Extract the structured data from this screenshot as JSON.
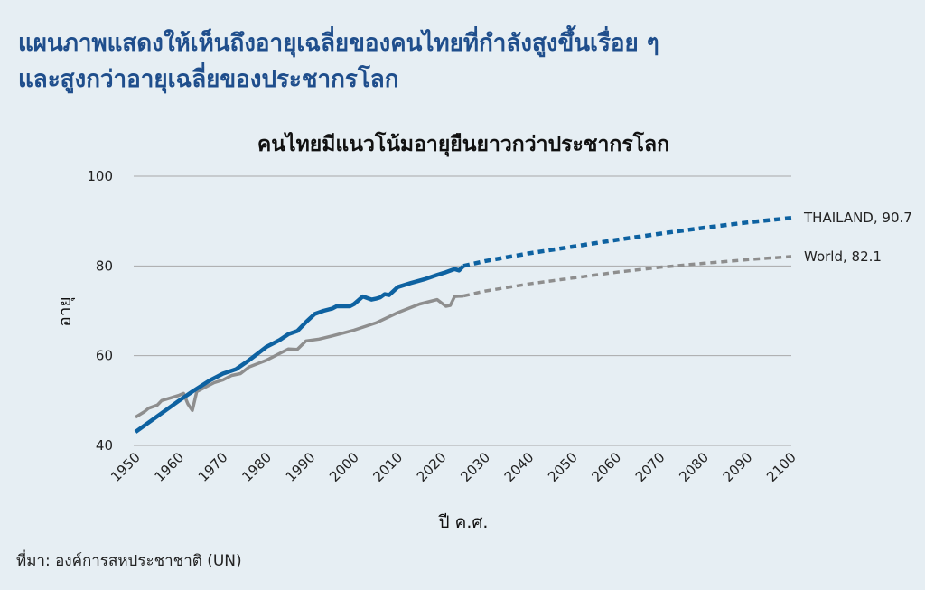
{
  "headline": {
    "line1": "แผนภาพแสดงให้เห็นถึงอายุเฉลี่ยของคนไทยที่กำลังสูงขึ้นเรื่อย ๆ",
    "line2": "และสูงกว่าอายุเฉลี่ยของประชากรโลก"
  },
  "source": "ที่มา:  องค์การสหประชาชาติ (UN)",
  "colors": {
    "thailand": "#0e62a1",
    "world": "#8e8e8e",
    "grid": "#a8a8a8",
    "background": "#e6eef3"
  },
  "chart_data": {
    "type": "line",
    "title": "คนไทยมีแนวโน้มอายุยืนยาวกว่าประชากรโลก",
    "xlabel": "ปี ค.ศ.",
    "ylabel": "อายุ",
    "xlim": [
      1950,
      2100
    ],
    "ylim": [
      40,
      100
    ],
    "x_ticks": [
      "1950",
      "1960",
      "1970",
      "1980",
      "1990",
      "2000",
      "2010",
      "2020",
      "2030",
      "2040",
      "2050",
      "2060",
      "2070",
      "2080",
      "2090",
      "2100"
    ],
    "y_ticks": [
      "40",
      "60",
      "80",
      "100"
    ],
    "grid": true,
    "series": [
      {
        "name": "Thailand",
        "end_label": "THAILAND, 90.7",
        "historical": [
          [
            1950,
            43
          ],
          [
            1955,
            46.5
          ],
          [
            1960,
            50
          ],
          [
            1963,
            52
          ],
          [
            1967,
            54.5
          ],
          [
            1970,
            56
          ],
          [
            1973,
            57
          ],
          [
            1976,
            59
          ],
          [
            1978,
            60.5
          ],
          [
            1980,
            62
          ],
          [
            1982,
            63
          ],
          [
            1983,
            63.5
          ],
          [
            1985,
            64.8
          ],
          [
            1987,
            65.5
          ],
          [
            1989,
            67.5
          ],
          [
            1991,
            69.3
          ],
          [
            1993,
            70
          ],
          [
            1995,
            70.5
          ],
          [
            1996,
            71
          ],
          [
            1998,
            71
          ],
          [
            1999,
            71
          ],
          [
            2000,
            71.5
          ],
          [
            2002,
            73.2
          ],
          [
            2004,
            72.5
          ],
          [
            2005,
            72.7
          ],
          [
            2006,
            73
          ],
          [
            2007,
            73.7
          ],
          [
            2008,
            73.5
          ],
          [
            2010,
            75.3
          ],
          [
            2013,
            76.2
          ],
          [
            2016,
            77
          ],
          [
            2019,
            78
          ],
          [
            2021,
            78.6
          ],
          [
            2023,
            79.3
          ],
          [
            2024,
            79
          ],
          [
            2025,
            80
          ]
        ],
        "projected": [
          [
            2025,
            80
          ],
          [
            2030,
            81.1
          ],
          [
            2040,
            82.8
          ],
          [
            2050,
            84.3
          ],
          [
            2060,
            85.8
          ],
          [
            2070,
            87.2
          ],
          [
            2080,
            88.5
          ],
          [
            2090,
            89.7
          ],
          [
            2100,
            90.7
          ]
        ]
      },
      {
        "name": "World",
        "end_label": "World, 82.1",
        "historical": [
          [
            1950,
            46.3
          ],
          [
            1952,
            47.5
          ],
          [
            1953,
            48.3
          ],
          [
            1955,
            49
          ],
          [
            1956,
            50
          ],
          [
            1958,
            50.6
          ],
          [
            1960,
            51.2
          ],
          [
            1961,
            51.6
          ],
          [
            1962,
            49.2
          ],
          [
            1963,
            47.8
          ],
          [
            1964,
            52
          ],
          [
            1966,
            53
          ],
          [
            1968,
            54
          ],
          [
            1970,
            54.6
          ],
          [
            1972,
            55.6
          ],
          [
            1974,
            56
          ],
          [
            1976,
            57.5
          ],
          [
            1980,
            59
          ],
          [
            1985,
            61.5
          ],
          [
            1987,
            61.4
          ],
          [
            1989,
            63.3
          ],
          [
            1992,
            63.7
          ],
          [
            1995,
            64.4
          ],
          [
            2000,
            65.7
          ],
          [
            2005,
            67.3
          ],
          [
            2010,
            69.6
          ],
          [
            2015,
            71.5
          ],
          [
            2019,
            72.5
          ],
          [
            2021,
            71
          ],
          [
            2022,
            71.2
          ],
          [
            2023,
            73.2
          ],
          [
            2025,
            73.3
          ]
        ],
        "projected": [
          [
            2025,
            73.3
          ],
          [
            2030,
            74.4
          ],
          [
            2040,
            76
          ],
          [
            2050,
            77.3
          ],
          [
            2060,
            78.6
          ],
          [
            2070,
            79.7
          ],
          [
            2080,
            80.6
          ],
          [
            2090,
            81.4
          ],
          [
            2100,
            82.1
          ]
        ]
      }
    ]
  }
}
